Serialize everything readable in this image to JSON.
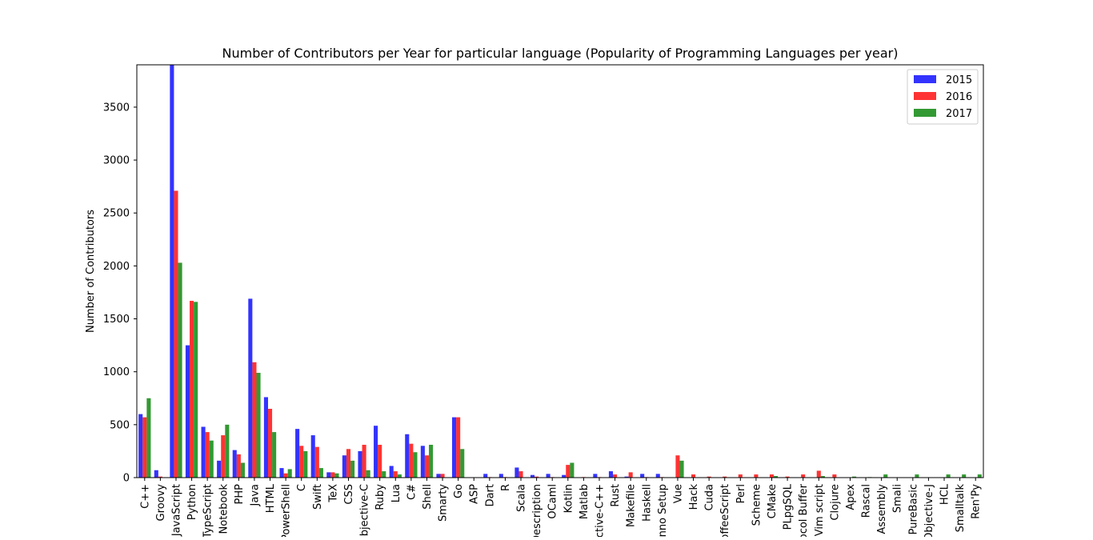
{
  "chart_data": {
    "type": "bar",
    "title": "Number of Contributors per Year for particular language (Popularity of Programming Languages per year)",
    "ylabel": "Number of Contributors",
    "xlabel": "",
    "ylim": [
      0,
      3900
    ],
    "yticks": [
      0,
      500,
      1000,
      1500,
      2000,
      2500,
      3000,
      3500
    ],
    "grid": false,
    "legend_position": "top-right",
    "categories": [
      "C++",
      "Groovy",
      "JavaScript",
      "Python",
      "TypeScript",
      "Jupyter Notebook",
      "PHP",
      "Java",
      "HTML",
      "PowerShell",
      "C",
      "Swift",
      "TeX",
      "CSS",
      "Objective-C",
      "Ruby",
      "Lua",
      "C#",
      "Shell",
      "Smarty",
      "Go",
      "ASP",
      "Dart",
      "R",
      "Scala",
      "Protocol Buffer Description",
      "OCaml",
      "Kotlin",
      "Matlab",
      "Objective-C++",
      "Rust",
      "Makefile",
      "Haskell",
      "Inno Setup",
      "Vue",
      "Hack",
      "Cuda",
      "CoffeeScript",
      "Perl",
      "Scheme",
      "CMake",
      "PLpgSQL",
      "Protocol Buffer",
      "Vim script",
      "Clojure",
      "Apex",
      "Rascal",
      "Assembly",
      "Smali",
      "PureBasic",
      "Objective-J",
      "HCL",
      "Smalltalk",
      "Ren'Py"
    ],
    "tick_labels": [
      "C++",
      "Groovy",
      "JavaScript",
      "Python",
      "TypeScript",
      "Notebook",
      "PHP",
      "Java",
      "HTML",
      "PowerShell",
      "C",
      "Swift",
      "TeX",
      "CSS",
      "Objective-C",
      "Ruby",
      "Lua",
      "C#",
      "Shell",
      "Smarty",
      "Go",
      "ASP",
      "Dart",
      "R",
      "Scala",
      "Description",
      "OCaml",
      "Kotlin",
      "Matlab",
      "Objective-C++",
      "Rust",
      "Makefile",
      "Haskell",
      "Inno Setup",
      "Vue",
      "Hack",
      "Cuda",
      "CoffeeScript",
      "Perl",
      "Scheme",
      "CMake",
      "PLpgSQL",
      "Protocol Buffer",
      "Vim script",
      "Clojure",
      "Apex",
      "Rascal",
      "Assembly",
      "Smali",
      "PureBasic",
      "Objective-J",
      "HCL",
      "Smalltalk",
      "Ren'Py"
    ],
    "series": [
      {
        "name": "2015",
        "color": "#0000ff",
        "values": [
          600,
          70,
          3900,
          1250,
          480,
          160,
          260,
          1690,
          760,
          90,
          460,
          400,
          50,
          210,
          250,
          490,
          110,
          410,
          300,
          35,
          570,
          3,
          35,
          35,
          95,
          25,
          35,
          25,
          3,
          35,
          60,
          10,
          35,
          35,
          3,
          3,
          3,
          3,
          3,
          3,
          3,
          3,
          3,
          3,
          3,
          3,
          3,
          3,
          3,
          3,
          3,
          3,
          3,
          3
        ]
      },
      {
        "name": "2016",
        "color": "#ff0000",
        "values": [
          570,
          10,
          2710,
          1670,
          430,
          400,
          220,
          1090,
          650,
          40,
          300,
          290,
          50,
          270,
          310,
          310,
          60,
          320,
          210,
          35,
          570,
          3,
          5,
          5,
          60,
          10,
          5,
          120,
          5,
          5,
          30,
          50,
          5,
          5,
          210,
          30,
          10,
          10,
          30,
          30,
          30,
          10,
          30,
          65,
          30,
          3,
          3,
          3,
          3,
          3,
          3,
          3,
          3,
          3
        ]
      },
      {
        "name": "2017",
        "color": "#008000",
        "values": [
          750,
          3,
          2030,
          1660,
          350,
          500,
          140,
          990,
          430,
          80,
          250,
          90,
          40,
          160,
          70,
          60,
          30,
          240,
          310,
          3,
          270,
          3,
          3,
          3,
          3,
          3,
          3,
          140,
          3,
          3,
          3,
          3,
          3,
          3,
          160,
          3,
          3,
          3,
          3,
          3,
          15,
          3,
          3,
          15,
          3,
          10,
          5,
          30,
          3,
          30,
          3,
          30,
          30,
          30
        ]
      }
    ]
  }
}
